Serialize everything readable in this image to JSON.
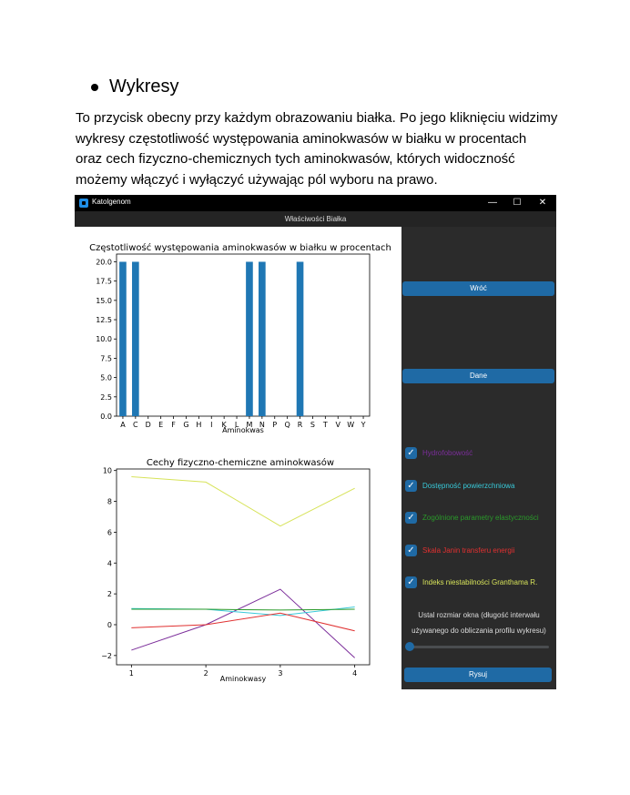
{
  "document": {
    "heading": "Wykresy",
    "paragraph_lines": [
      "To przycisk obecny przy każdym obrazowaniu białka. Po jego kliknięciu widzimy",
      "wykresy częstotliwość występowania aminokwasów w białku w procentach",
      "oraz cech fizyczno-chemicznych tych aminokwasów, których widoczność",
      "możemy włączyć i wyłączyć używając pól wyboru na prawo."
    ]
  },
  "window": {
    "title": "Katolgenom",
    "controls": {
      "minimize": "—",
      "maximize": "☐",
      "close": "✕"
    },
    "subheader": "Właściwości Białka"
  },
  "sidebar": {
    "back_button": "Wróć",
    "data_button": "Dane",
    "checkboxes": [
      {
        "label": "Hydrofobowość",
        "color": "#7b2d9a",
        "checked": true
      },
      {
        "label": "Dostępność powierzchniowa",
        "color": "#38c9d9",
        "checked": true
      },
      {
        "label": "Zogólnione parametry elastyczności",
        "color": "#2a9a2a",
        "checked": true
      },
      {
        "label": "Skala Janin transferu energii",
        "color": "#e03030",
        "checked": true
      },
      {
        "label": "Indeks niestabilności Granthama R.",
        "color": "#d7e35a",
        "checked": true
      }
    ],
    "window_size_label_lines": [
      "Ustal rozmiar okna (długość interwału",
      "używanego do obliczania profilu wykresu)"
    ],
    "slider_value": 0,
    "draw_button": "Rysuj"
  },
  "chart_data": [
    {
      "type": "bar",
      "title": "Częstotliwość występowania aminokwasów w białku w procentach",
      "xlabel": "Aminokwas",
      "ylabel": "",
      "categories": [
        "A",
        "C",
        "D",
        "E",
        "F",
        "G",
        "H",
        "I",
        "K",
        "L",
        "M",
        "N",
        "P",
        "Q",
        "R",
        "S",
        "T",
        "V",
        "W",
        "Y"
      ],
      "values": [
        20,
        20,
        0,
        0,
        0,
        0,
        0,
        0,
        0,
        0,
        20,
        20,
        0,
        0,
        20,
        0,
        0,
        0,
        0,
        0
      ],
      "ylim": [
        0,
        21
      ],
      "yticks": [
        "0.0",
        "2.5",
        "5.0",
        "7.5",
        "10.0",
        "12.5",
        "15.0",
        "17.5",
        "20.0"
      ],
      "color": "#1f77b4",
      "grid": false
    },
    {
      "type": "line",
      "title": "Cechy fizyczno-chemiczne aminokwasów",
      "xlabel": "Aminokwasy",
      "ylabel": "",
      "x": [
        1,
        2,
        3,
        4
      ],
      "xticks": [
        "1",
        "2",
        "3",
        "4"
      ],
      "yticks": [
        "−2",
        "0",
        "2",
        "4",
        "6",
        "8",
        "10"
      ],
      "ylim": [
        -2.6,
        10.1
      ],
      "xlim": [
        0.8,
        4.2
      ],
      "series": [
        {
          "name": "Hydrofobowość",
          "color": "#7b2d9a",
          "values": [
            -1.65,
            0.0,
            2.3,
            -2.15
          ]
        },
        {
          "name": "Dostępność powierzchniowa",
          "color": "#38c9d9",
          "values": [
            1.05,
            1.0,
            0.6,
            1.15
          ]
        },
        {
          "name": "Zogólnione parametry elastyczności",
          "color": "#2a9a2a",
          "values": [
            1.0,
            1.0,
            0.95,
            1.0
          ]
        },
        {
          "name": "Skala Janin transferu energii",
          "color": "#e03030",
          "values": [
            -0.2,
            0.0,
            0.75,
            -0.4
          ]
        },
        {
          "name": "Indeks niestabilności Granthama R.",
          "color": "#d7e35a",
          "values": [
            9.6,
            9.25,
            6.4,
            8.85
          ]
        }
      ],
      "grid": false
    }
  ]
}
